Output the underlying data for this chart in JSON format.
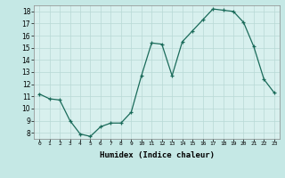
{
  "x": [
    0,
    1,
    2,
    3,
    4,
    5,
    6,
    7,
    8,
    9,
    10,
    11,
    12,
    13,
    14,
    15,
    16,
    17,
    18,
    19,
    20,
    21,
    22,
    23
  ],
  "y": [
    11.2,
    10.8,
    10.7,
    9.0,
    7.9,
    7.7,
    8.5,
    8.8,
    8.8,
    9.7,
    12.7,
    15.4,
    15.3,
    12.7,
    15.5,
    16.4,
    17.3,
    18.2,
    18.1,
    18.0,
    17.1,
    15.1,
    12.4,
    11.3
  ],
  "title": "",
  "xlabel": "Humidex (Indice chaleur)",
  "ylabel": "",
  "xlim": [
    -0.5,
    23.5
  ],
  "ylim": [
    7.5,
    18.5
  ],
  "yticks": [
    8,
    9,
    10,
    11,
    12,
    13,
    14,
    15,
    16,
    17,
    18
  ],
  "xtick_labels": [
    "0",
    "1",
    "2",
    "3",
    "4",
    "5",
    "6",
    "7",
    "8",
    "9",
    "10",
    "11",
    "12",
    "13",
    "14",
    "15",
    "16",
    "17",
    "18",
    "19",
    "20",
    "21",
    "22",
    "23"
  ],
  "line_color": "#1a6b5a",
  "marker_color": "#1a6b5a",
  "bg_color": "#c5e8e5",
  "grid_major_color": "#b8d8d5",
  "grid_minor_color": "#cce8e5",
  "plot_bg_color": "#d8f0ee"
}
